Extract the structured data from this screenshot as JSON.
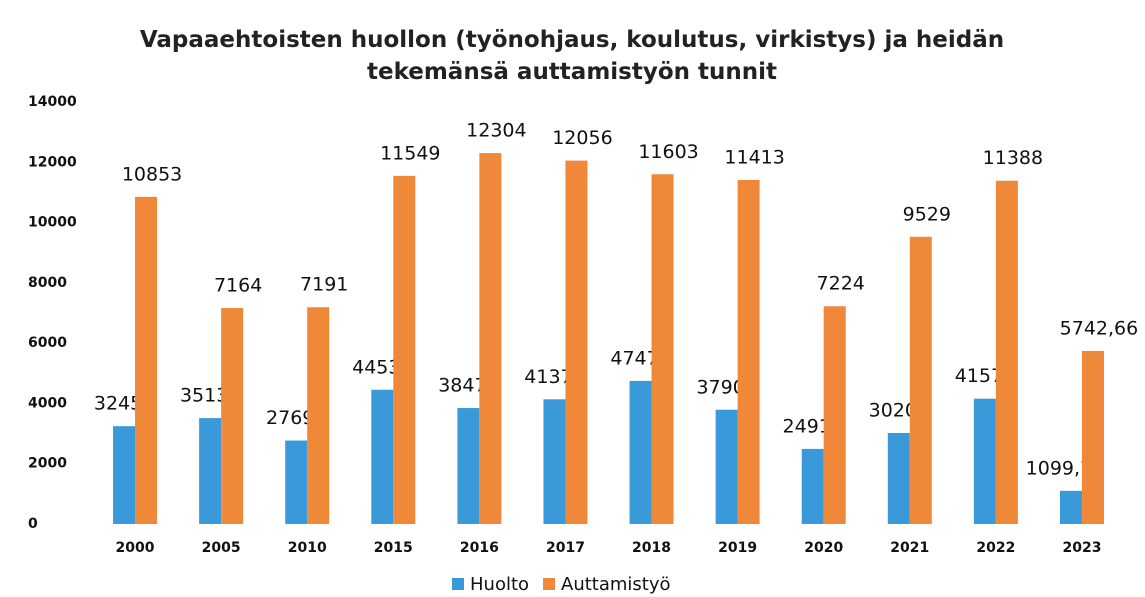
{
  "chart_data": {
    "type": "bar",
    "title": "Vapaaehtoisten huollon (työnohjaus, koulutus, virkistys) ja heidän tekemänsä auttamistyön tunnit",
    "categories": [
      "2000",
      "2005",
      "2010",
      "2015",
      "2016",
      "2017",
      "2018",
      "2019",
      "2020",
      "2021",
      "2022",
      "2023"
    ],
    "series": [
      {
        "name": "Huolto",
        "color": "#3a9ad9",
        "values": [
          3245,
          3513,
          2769,
          4453,
          3847,
          4137,
          4747,
          3790,
          2491,
          3020,
          4157,
          1099.75
        ],
        "value_labels": [
          "3245",
          "3513",
          "2769",
          "4453",
          "3847",
          "4137",
          "4747",
          "3790",
          "2491",
          "3020",
          "4157",
          "1099,75"
        ]
      },
      {
        "name": "Auttamistyö",
        "color": "#f0883a",
        "values": [
          10853,
          7164,
          7191,
          11549,
          12304,
          12056,
          11603,
          11413,
          7224,
          9529,
          11388,
          5742.66
        ],
        "value_labels": [
          "10853",
          "7164",
          "7191",
          "11549",
          "12304",
          "12056",
          "11603",
          "11413",
          "7224",
          "9529",
          "11388",
          "5742,66"
        ]
      }
    ],
    "ylim": [
      0,
      14000
    ],
    "yticks": [
      0,
      2000,
      4000,
      6000,
      8000,
      10000,
      12000,
      14000
    ],
    "grid": false,
    "legend": "bottom"
  }
}
